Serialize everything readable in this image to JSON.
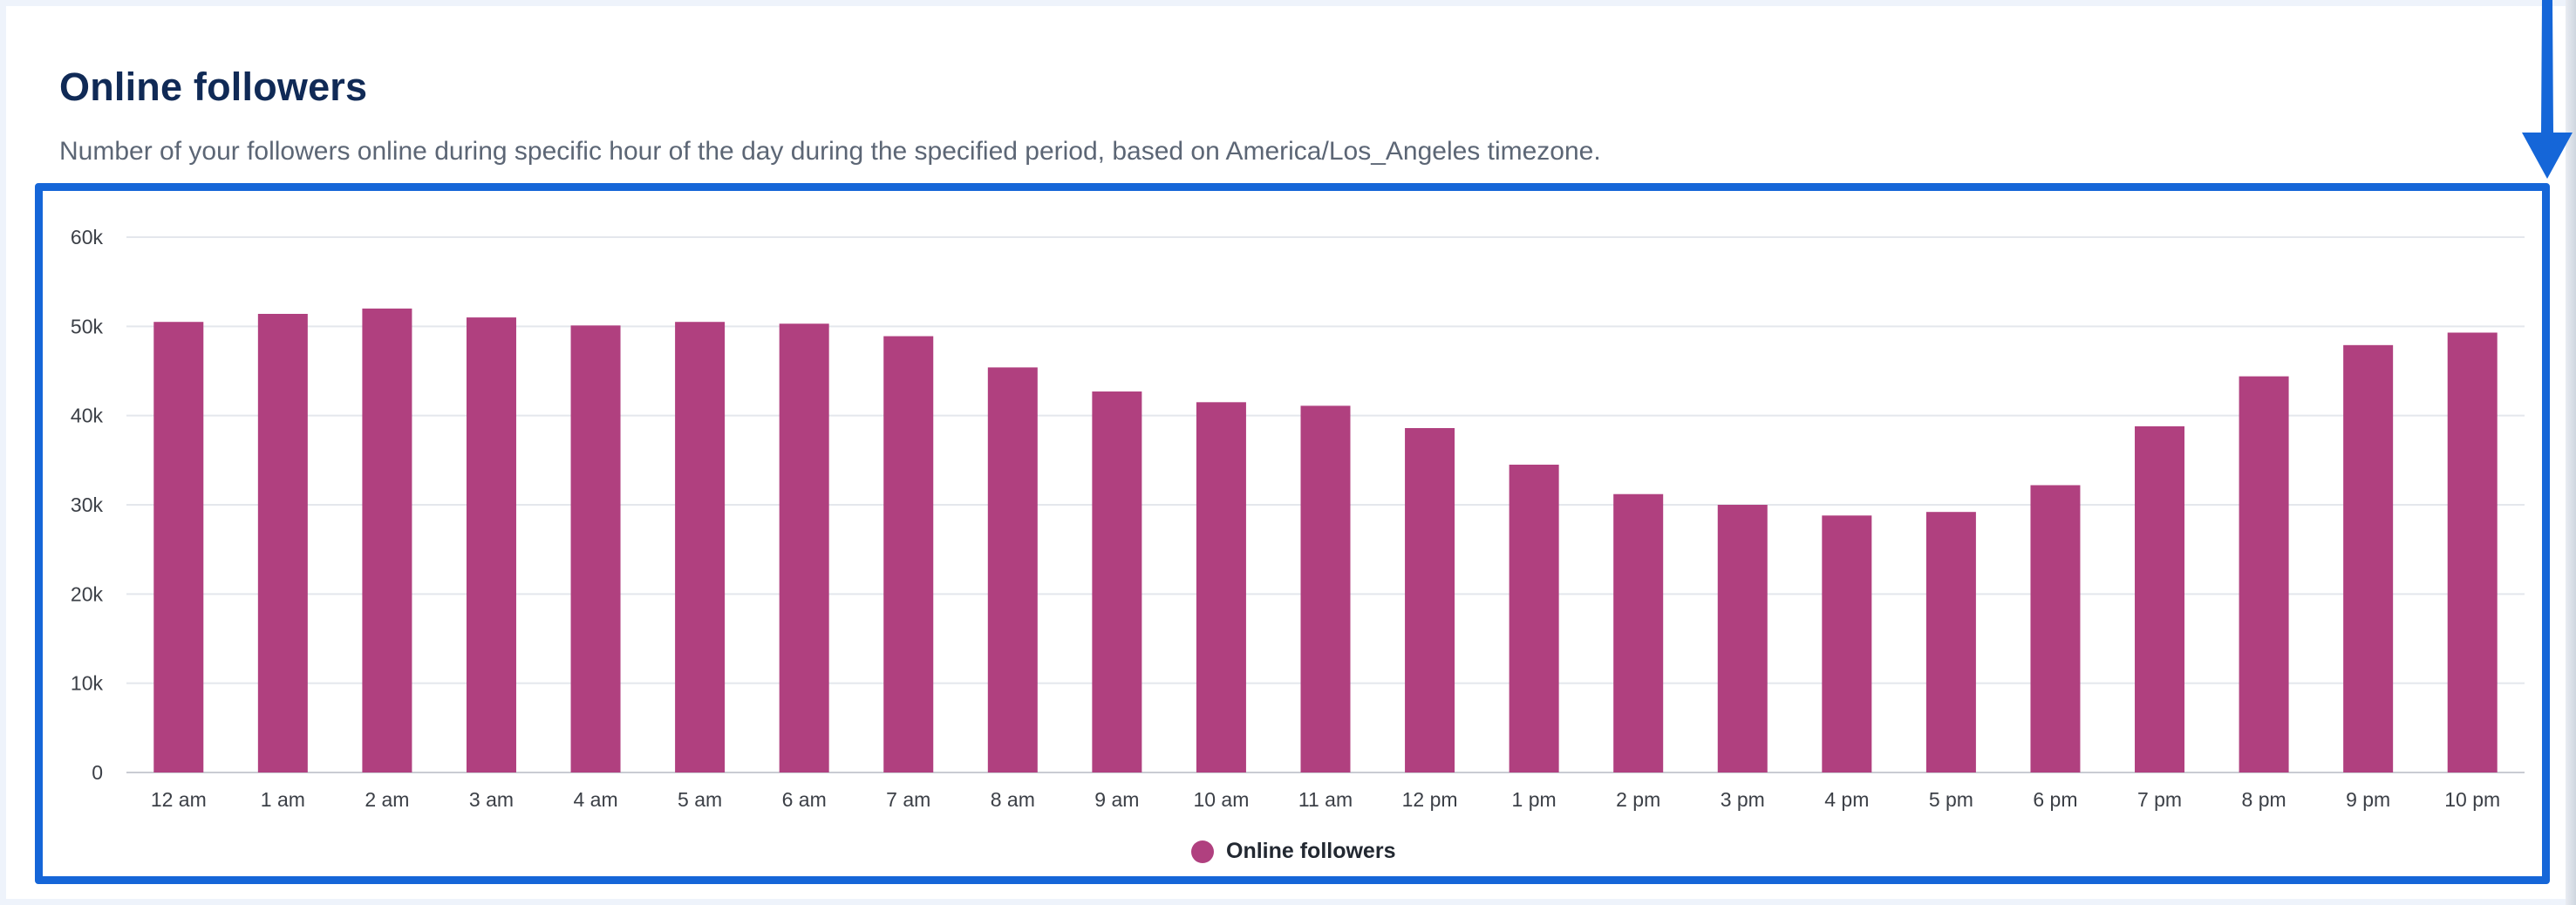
{
  "header": {
    "title": "Online followers",
    "subtitle": "Number of your followers online during specific hour of the day during the specified period, based on America/Los_Angeles timezone."
  },
  "colors": {
    "bar": "#b0407f",
    "highlight": "#1566d8",
    "grid": "#e4e7ec",
    "axis": "#c9ccd3"
  },
  "icons": {
    "annotation_arrow": "down-arrow-icon",
    "legend_marker": "circle-marker-icon"
  },
  "legend": {
    "label": "Online followers"
  },
  "chart_data": {
    "type": "bar",
    "title": "",
    "xlabel": "",
    "ylabel": "",
    "ylim": [
      0,
      60000
    ],
    "yticks": [
      0,
      10000,
      20000,
      30000,
      40000,
      50000,
      60000
    ],
    "ytick_labels": [
      "0",
      "10k",
      "20k",
      "30k",
      "40k",
      "50k",
      "60k"
    ],
    "grid": true,
    "legend_position": "bottom-center",
    "categories": [
      "12 am",
      "1 am",
      "2 am",
      "3 am",
      "4 am",
      "5 am",
      "6 am",
      "7 am",
      "8 am",
      "9 am",
      "10 am",
      "11 am",
      "12 pm",
      "1 pm",
      "2 pm",
      "3 pm",
      "4 pm",
      "5 pm",
      "6 pm",
      "7 pm",
      "8 pm",
      "9 pm",
      "10 pm"
    ],
    "series": [
      {
        "name": "Online followers",
        "values": [
          50500,
          51400,
          52000,
          51000,
          50100,
          50500,
          50300,
          48900,
          45400,
          42700,
          41500,
          41100,
          38600,
          34500,
          31200,
          30000,
          28800,
          29200,
          32200,
          38800,
          44400,
          47900,
          49300
        ]
      }
    ]
  }
}
